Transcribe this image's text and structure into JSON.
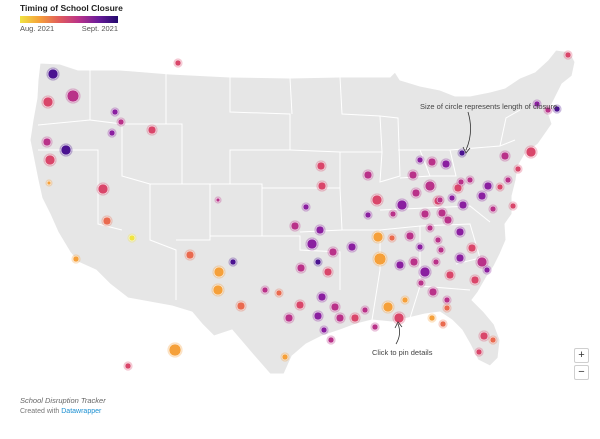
{
  "legend": {
    "title": "Timing of School Closure",
    "start_label": "Aug. 2021",
    "end_label": "Sept. 2021",
    "gradient_colors": [
      "#f0e442",
      "#f5a03a",
      "#e05c5c",
      "#b93289",
      "#6a1c9a",
      "#220a6e"
    ]
  },
  "annotations": {
    "size_note": "Size of circle represents length of closure",
    "click_note": "Click to pin details"
  },
  "controls": {
    "zoom_in": "+",
    "zoom_out": "−"
  },
  "footer": {
    "source": "School Disruption Tracker",
    "created_with": "Created with ",
    "tool": "Datawrapper"
  },
  "colors": {
    "land": "#e6e6e6",
    "border": "#ffffff",
    "accent_link": "#1a8fd1"
  }
}
